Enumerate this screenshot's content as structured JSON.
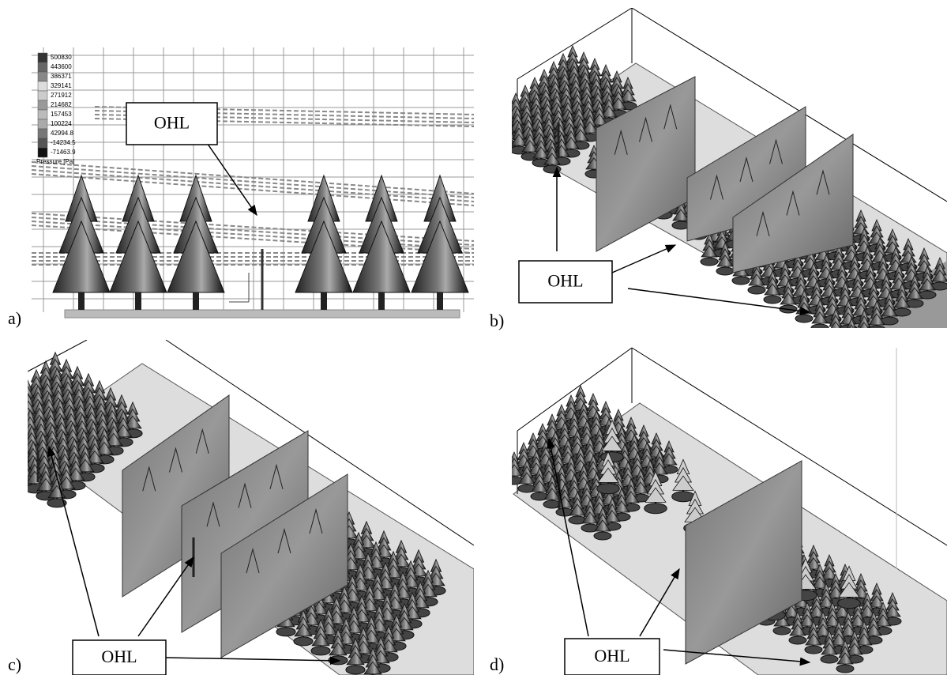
{
  "panels": [
    {
      "label": "a)",
      "callout": "OHL",
      "legend": {
        "values": [
          "500830",
          "443600",
          "386371",
          "329141",
          "271912",
          "214682",
          "157453",
          "100224",
          "42994.8",
          "-14234.5",
          "-71463.9"
        ],
        "title": "Pressure [Pa]"
      }
    },
    {
      "label": "b)",
      "callout": "OHL"
    },
    {
      "label": "c)",
      "callout": "OHL"
    },
    {
      "label": "d)",
      "callout": "OHL"
    }
  ]
}
